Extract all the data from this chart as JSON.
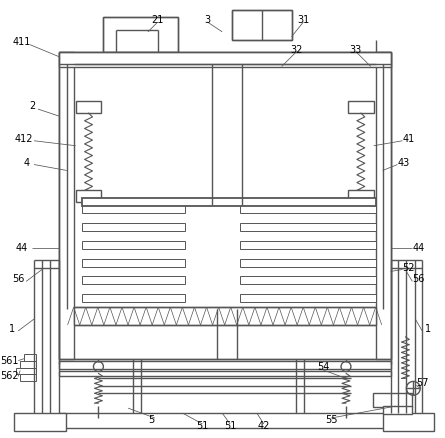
{
  "background": "#ffffff",
  "line_color": "#555555",
  "line_width": 1.0,
  "thin_line": 0.7,
  "label_fontsize": 7.0
}
